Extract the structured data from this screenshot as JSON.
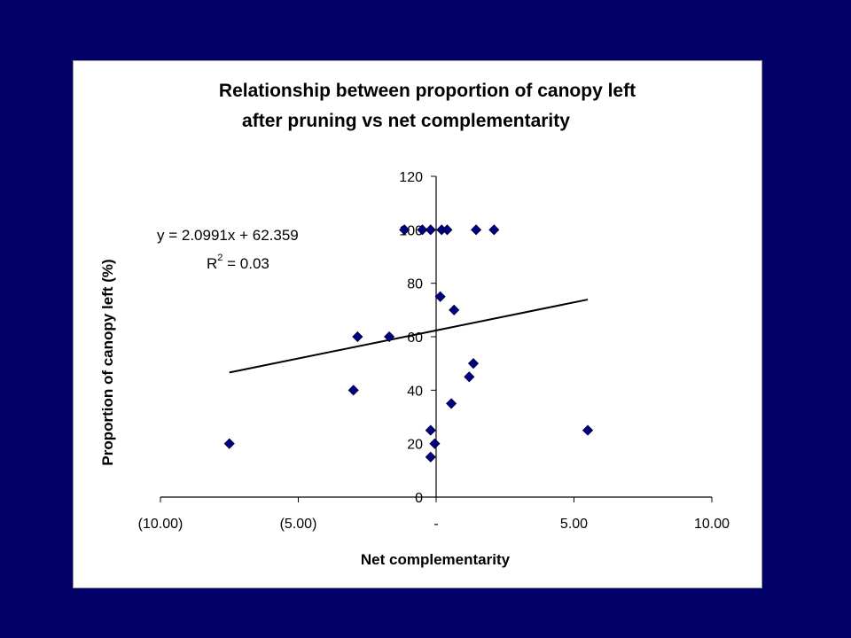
{
  "colors": {
    "background": "#000066",
    "panel": "#ffffff",
    "marker": "#000080",
    "trendline": "#000000",
    "axis": "#000000"
  },
  "chart_data": {
    "type": "scatter",
    "title": [
      "Relationship between proportion of canopy left",
      "after pruning vs net complementarity"
    ],
    "xlabel": "Net complementarity",
    "ylabel": "Proportion of canopy left (%)",
    "xlim": [
      -10,
      10
    ],
    "ylim": [
      0,
      120
    ],
    "x_ticks": [
      -10,
      -5,
      0,
      5,
      10
    ],
    "x_tick_labels": [
      "(10.00)",
      "(5.00)",
      "-",
      "5.00",
      "10.00"
    ],
    "y_ticks": [
      0,
      20,
      40,
      60,
      80,
      100,
      120
    ],
    "y_tick_labels": [
      "0",
      "20",
      "40",
      "60",
      "80",
      "100",
      "120"
    ],
    "grid": false,
    "legend": "none",
    "marker": "diamond",
    "points": [
      {
        "x": -7.5,
        "y": 20
      },
      {
        "x": -3.0,
        "y": 40
      },
      {
        "x": -2.85,
        "y": 60
      },
      {
        "x": -1.7,
        "y": 60
      },
      {
        "x": -1.15,
        "y": 100
      },
      {
        "x": -0.5,
        "y": 100
      },
      {
        "x": -0.2,
        "y": 100
      },
      {
        "x": 0.2,
        "y": 100
      },
      {
        "x": 0.4,
        "y": 100
      },
      {
        "x": 1.45,
        "y": 100
      },
      {
        "x": 2.1,
        "y": 100
      },
      {
        "x": 0.15,
        "y": 75
      },
      {
        "x": 0.65,
        "y": 70
      },
      {
        "x": 1.35,
        "y": 50
      },
      {
        "x": 1.2,
        "y": 45
      },
      {
        "x": 0.55,
        "y": 35
      },
      {
        "x": -0.2,
        "y": 25
      },
      {
        "x": -0.05,
        "y": 20
      },
      {
        "x": -0.2,
        "y": 15
      },
      {
        "x": 5.5,
        "y": 25
      }
    ],
    "trendline": {
      "type": "linear",
      "slope": 2.0991,
      "intercept": 62.359,
      "x_range": [
        -7.5,
        5.5
      ],
      "equation_text": "y = 2.0991x + 62.359",
      "r2_label": "R",
      "r2_superscript": "2",
      "r2_value_text": " = 0.03"
    }
  }
}
